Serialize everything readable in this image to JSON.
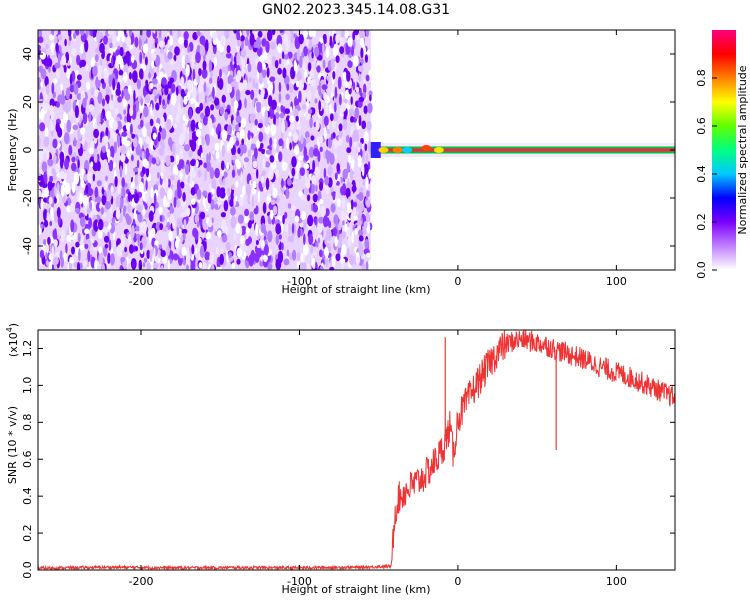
{
  "title": "GN02.2023.345.14.08.G31",
  "chart_data": [
    {
      "type": "heatmap",
      "xlabel": "Height of straight line (km)",
      "ylabel": "Frequency (Hz)",
      "xlim": [
        -265,
        137
      ],
      "ylim": [
        -50,
        50
      ],
      "x_ticks": [
        -200,
        -100,
        0,
        100
      ],
      "x_tick_labels": [
        "-200",
        "-100",
        "0",
        "100"
      ],
      "y_ticks": [
        -40,
        -20,
        0,
        20,
        40
      ],
      "y_tick_labels": [
        "-40",
        "-20",
        "0",
        "20",
        "40"
      ],
      "noise_region_x": [
        -265,
        -55
      ],
      "signal_line_freq": 0,
      "signal_start_x": -55,
      "colorbar": {
        "label": "Normalized spectral amplitude",
        "range": [
          0.0,
          1.0
        ],
        "ticks": [
          0.0,
          0.2,
          0.4,
          0.6,
          0.8
        ],
        "tick_labels": [
          "0.0",
          "0.2",
          "0.4",
          "0.6",
          "0.8"
        ],
        "colors": [
          "#ffffff",
          "#c080ff",
          "#7a00ff",
          "#0000ff",
          "#00c8ff",
          "#00ff80",
          "#60ff00",
          "#ffff00",
          "#ff8000",
          "#ff0000",
          "#ff0080"
        ]
      }
    },
    {
      "type": "line",
      "xlabel": "Height of straight line (km)",
      "ylabel": "SNR (10 * v/v)",
      "y_scale_label": "(x10",
      "y_scale_exp": "4",
      "y_scale_close": ")",
      "xlim": [
        -265,
        137
      ],
      "ylim": [
        0,
        1.3
      ],
      "x_ticks": [
        -200,
        -100,
        0,
        100
      ],
      "x_tick_labels": [
        "-200",
        "-100",
        "0",
        "100"
      ],
      "y_ticks": [
        0.0,
        0.2,
        0.4,
        0.6,
        0.8,
        1.0,
        1.2
      ],
      "y_tick_labels": [
        "0.0",
        "0.2",
        "0.4",
        "0.6",
        "0.8",
        "1.0",
        "1.2"
      ],
      "color": "#ee3333",
      "series": [
        {
          "x": [
            -265,
            -220,
            -180,
            -140,
            -100,
            -60,
            -42,
            -40,
            -38,
            -35,
            -30,
            -25,
            -20,
            -15,
            -10,
            -7,
            -5,
            -3,
            0,
            5,
            10,
            15,
            20,
            25,
            30,
            35,
            40,
            45,
            50,
            55,
            60,
            70,
            80,
            90,
            100,
            110,
            120,
            130,
            137
          ],
          "y": [
            0.01,
            0.015,
            0.012,
            0.013,
            0.012,
            0.015,
            0.02,
            0.3,
            0.38,
            0.41,
            0.45,
            0.48,
            0.52,
            0.58,
            0.65,
            0.72,
            0.78,
            0.62,
            0.82,
            0.9,
            0.98,
            1.05,
            1.12,
            1.18,
            1.22,
            1.24,
            1.25,
            1.24,
            1.23,
            1.22,
            1.2,
            1.17,
            1.14,
            1.1,
            1.07,
            1.04,
            1.0,
            0.96,
            0.93
          ]
        }
      ],
      "spikes_x": [
        -8,
        62
      ],
      "spikes_y": [
        1.26,
        0.65
      ]
    }
  ]
}
